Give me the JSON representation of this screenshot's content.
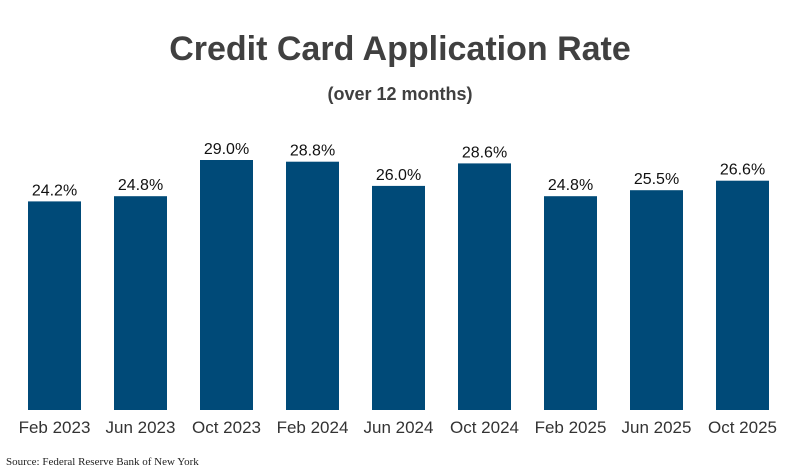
{
  "chart_data": {
    "type": "bar",
    "title": "Credit Card Application Rate",
    "subtitle": "(over 12 months)",
    "categories": [
      "Feb 2023",
      "Jun 2023",
      "Oct 2023",
      "Feb 2024",
      "Jun 2024",
      "Oct 2024",
      "Feb 2025",
      "Jun 2025",
      "Oct 2025"
    ],
    "values": [
      24.2,
      24.8,
      29.0,
      28.8,
      26.0,
      28.6,
      24.8,
      25.5,
      26.6
    ],
    "data_labels": [
      "24.2%",
      "24.8%",
      "29.0%",
      "28.8%",
      "26.0%",
      "28.6%",
      "24.8%",
      "25.5%",
      "26.6%"
    ],
    "xlabel": "",
    "ylabel": "",
    "ylim": [
      0,
      29
    ],
    "grid": false,
    "legend": "none",
    "bar_color": "#004a78"
  },
  "source": "Source: Federal Reserve Bank of New York"
}
